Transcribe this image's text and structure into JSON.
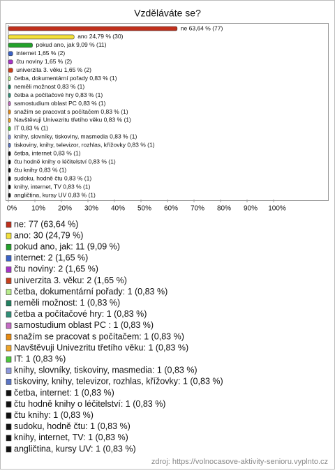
{
  "chart_data": {
    "type": "bar",
    "orientation": "horizontal",
    "title": "Vzděláváte se?",
    "categories": [
      "ne",
      "ano",
      "pokud ano, jak",
      "internet",
      "čtu noviny",
      "univerzita 3. věku",
      "četba, dokumentární pořady",
      "neměli možnost",
      "četba a počítačové hry",
      "samostudium oblast PC ",
      "snažím se pracovat s počítačem",
      "Navštěvuji Univezritu třetího věku",
      "IT",
      "knihy, slovníky, tiskoviny, masmedia",
      "tiskoviny, knihy, televizor, rozhlas, křížovky",
      "četba, internet",
      "čtu hodně knihy o léčitelství",
      "čtu knihy",
      "sudoku, hodně čtu",
      "knihy, internet, TV",
      "angličtina, kursy UV"
    ],
    "values": [
      63.64,
      24.79,
      9.09,
      1.65,
      1.65,
      1.65,
      0.83,
      0.83,
      0.83,
      0.83,
      0.83,
      0.83,
      0.83,
      0.83,
      0.83,
      0.83,
      0.83,
      0.83,
      0.83,
      0.83,
      0.83
    ],
    "value_labels": [
      "ne 63,64 % (77)",
      "ano 24,79 % (30)",
      "pokud ano, jak 9,09 % (11)",
      "internet 1,65 % (2)",
      "čtu noviny 1,65 % (2)",
      "univerzita 3. věku 1,65 % (2)",
      "četba, dokumentární pořady 0,83 % (1)",
      "neměli možnost 0,83 % (1)",
      "četba a počítačové hry 0,83 % (1)",
      "samostudium oblast PC  0,83 % (1)",
      "snažím se pracovat s počítačem 0,83 % (1)",
      "Navštěvuji Univezritu třetího věku 0,83 % (1)",
      "IT 0,83 % (1)",
      "knihy, slovníky, tiskoviny, masmedia 0,83 % (1)",
      "tiskoviny, knihy, televizor, rozhlas, křížovky 0,83 % (1)",
      "četba, internet 0,83 % (1)",
      "čtu hodně knihy o léčitelství 0,83 % (1)",
      "čtu knihy 0,83 % (1)",
      "sudoku, hodně čtu 0,83 % (1)",
      "knihy, internet, TV 0,83 % (1)",
      "angličtina, kursy UV 0,83 % (1)"
    ],
    "legend_labels": [
      "ne: 77 (63,64 %)",
      "ano: 30 (24,79 %)",
      "pokud ano, jak: 11 (9,09 %)",
      "internet: 2 (1,65 %)",
      "čtu noviny: 2 (1,65 %)",
      "univerzita 3. věku: 2 (1,65 %)",
      "četba, dokumentární pořady: 1 (0,83 %)",
      "neměli možnost: 1 (0,83 %)",
      "četba a počítačové hry: 1 (0,83 %)",
      "samostudium oblast PC : 1 (0,83 %)",
      "snažím se pracovat s počítačem: 1 (0,83 %)",
      "Navštěvuji Univezritu třetího věku: 1 (0,83 %)",
      "IT: 1 (0,83 %)",
      "knihy, slovníky, tiskoviny, masmedia: 1 (0,83 %)",
      "tiskoviny, knihy, televizor, rozhlas, křížovky: 1 (0,83 %)",
      "četba, internet: 1 (0,83 %)",
      "čtu hodně knihy o léčitelství: 1 (0,83 %)",
      "čtu knihy: 1 (0,83 %)",
      "sudoku, hodně čtu: 1 (0,83 %)",
      "knihy, internet, TV: 1 (0,83 %)",
      "angličtina, kursy UV: 1 (0,83 %)"
    ],
    "colors": [
      "#c0301c",
      "#f2e03a",
      "#22a22a",
      "#3a62c8",
      "#a834c8",
      "#c8401c",
      "#b8ec8c",
      "#208060",
      "#2f8f78",
      "#c46cc4",
      "#e88a10",
      "#eea428",
      "#4cc83c",
      "#8c98dc",
      "#5a74c4",
      "#111111",
      "#111111",
      "#111111",
      "#111111",
      "#111111",
      "#111111"
    ],
    "xlim": [
      0,
      100
    ],
    "xticks": [
      {
        "value": 0,
        "label": "0%"
      },
      {
        "value": 10,
        "label": "10%"
      },
      {
        "value": 20,
        "label": "20%"
      },
      {
        "value": 30,
        "label": "30%"
      },
      {
        "value": 40,
        "label": "40%"
      },
      {
        "value": 50,
        "label": "50%"
      },
      {
        "value": 60,
        "label": "60%"
      },
      {
        "value": 70,
        "label": "70%"
      },
      {
        "value": 80,
        "label": "80%"
      },
      {
        "value": 90,
        "label": "90%"
      },
      {
        "value": 100,
        "label": "100%"
      }
    ],
    "source": "zdroj: https://volnocasove-aktivity-senioru.vyplnto.cz"
  }
}
